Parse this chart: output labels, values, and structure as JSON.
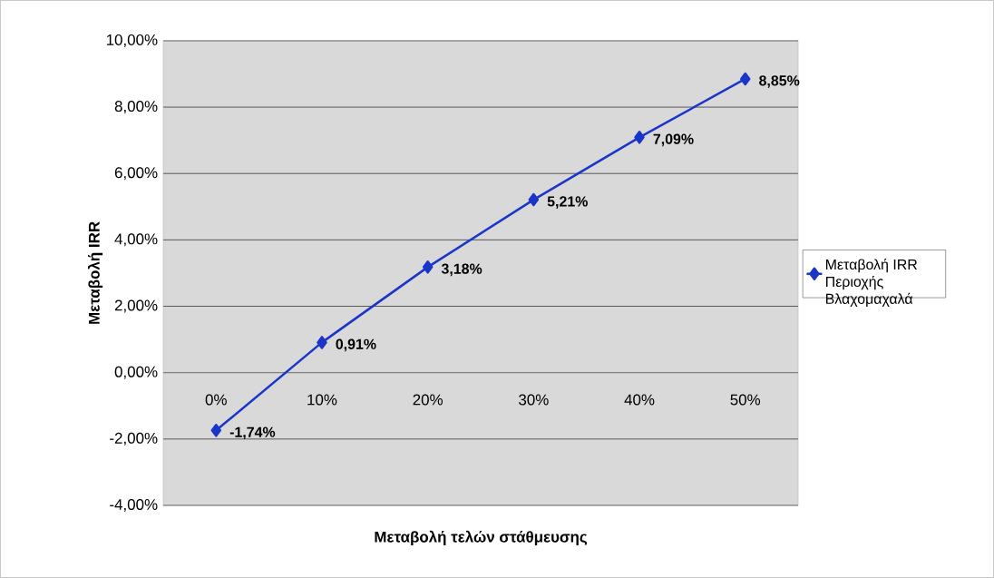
{
  "chart_data": {
    "type": "line",
    "xlabel": "Μεταβολή τελών στάθμευσης",
    "ylabel": "Μεταβολή IRR",
    "categories": [
      "0%",
      "10%",
      "20%",
      "30%",
      "40%",
      "50%"
    ],
    "series": [
      {
        "name": "Μεταβολή IRR Περιοχής Βλαχομαχαλά",
        "color": "#1a35c8",
        "values": [
          -1.74,
          0.91,
          3.18,
          5.21,
          7.09,
          8.85
        ],
        "value_labels": [
          "-1,74%",
          "0,91%",
          "3,18%",
          "5,21%",
          "7,09%",
          "8,85%"
        ]
      }
    ],
    "ylim": [
      -4,
      10
    ],
    "yticks": [
      {
        "value": -4,
        "label": "-4,00%"
      },
      {
        "value": -2,
        "label": "-2,00%"
      },
      {
        "value": 0,
        "label": "0,00%"
      },
      {
        "value": 2,
        "label": "2,00%"
      },
      {
        "value": 4,
        "label": "4,00%"
      },
      {
        "value": 6,
        "label": "6,00%"
      },
      {
        "value": 8,
        "label": "8,00%"
      },
      {
        "value": 10,
        "label": "10,00%"
      }
    ],
    "grid": "y",
    "legend": "right",
    "marker": "diamond",
    "line_style": "solid"
  }
}
